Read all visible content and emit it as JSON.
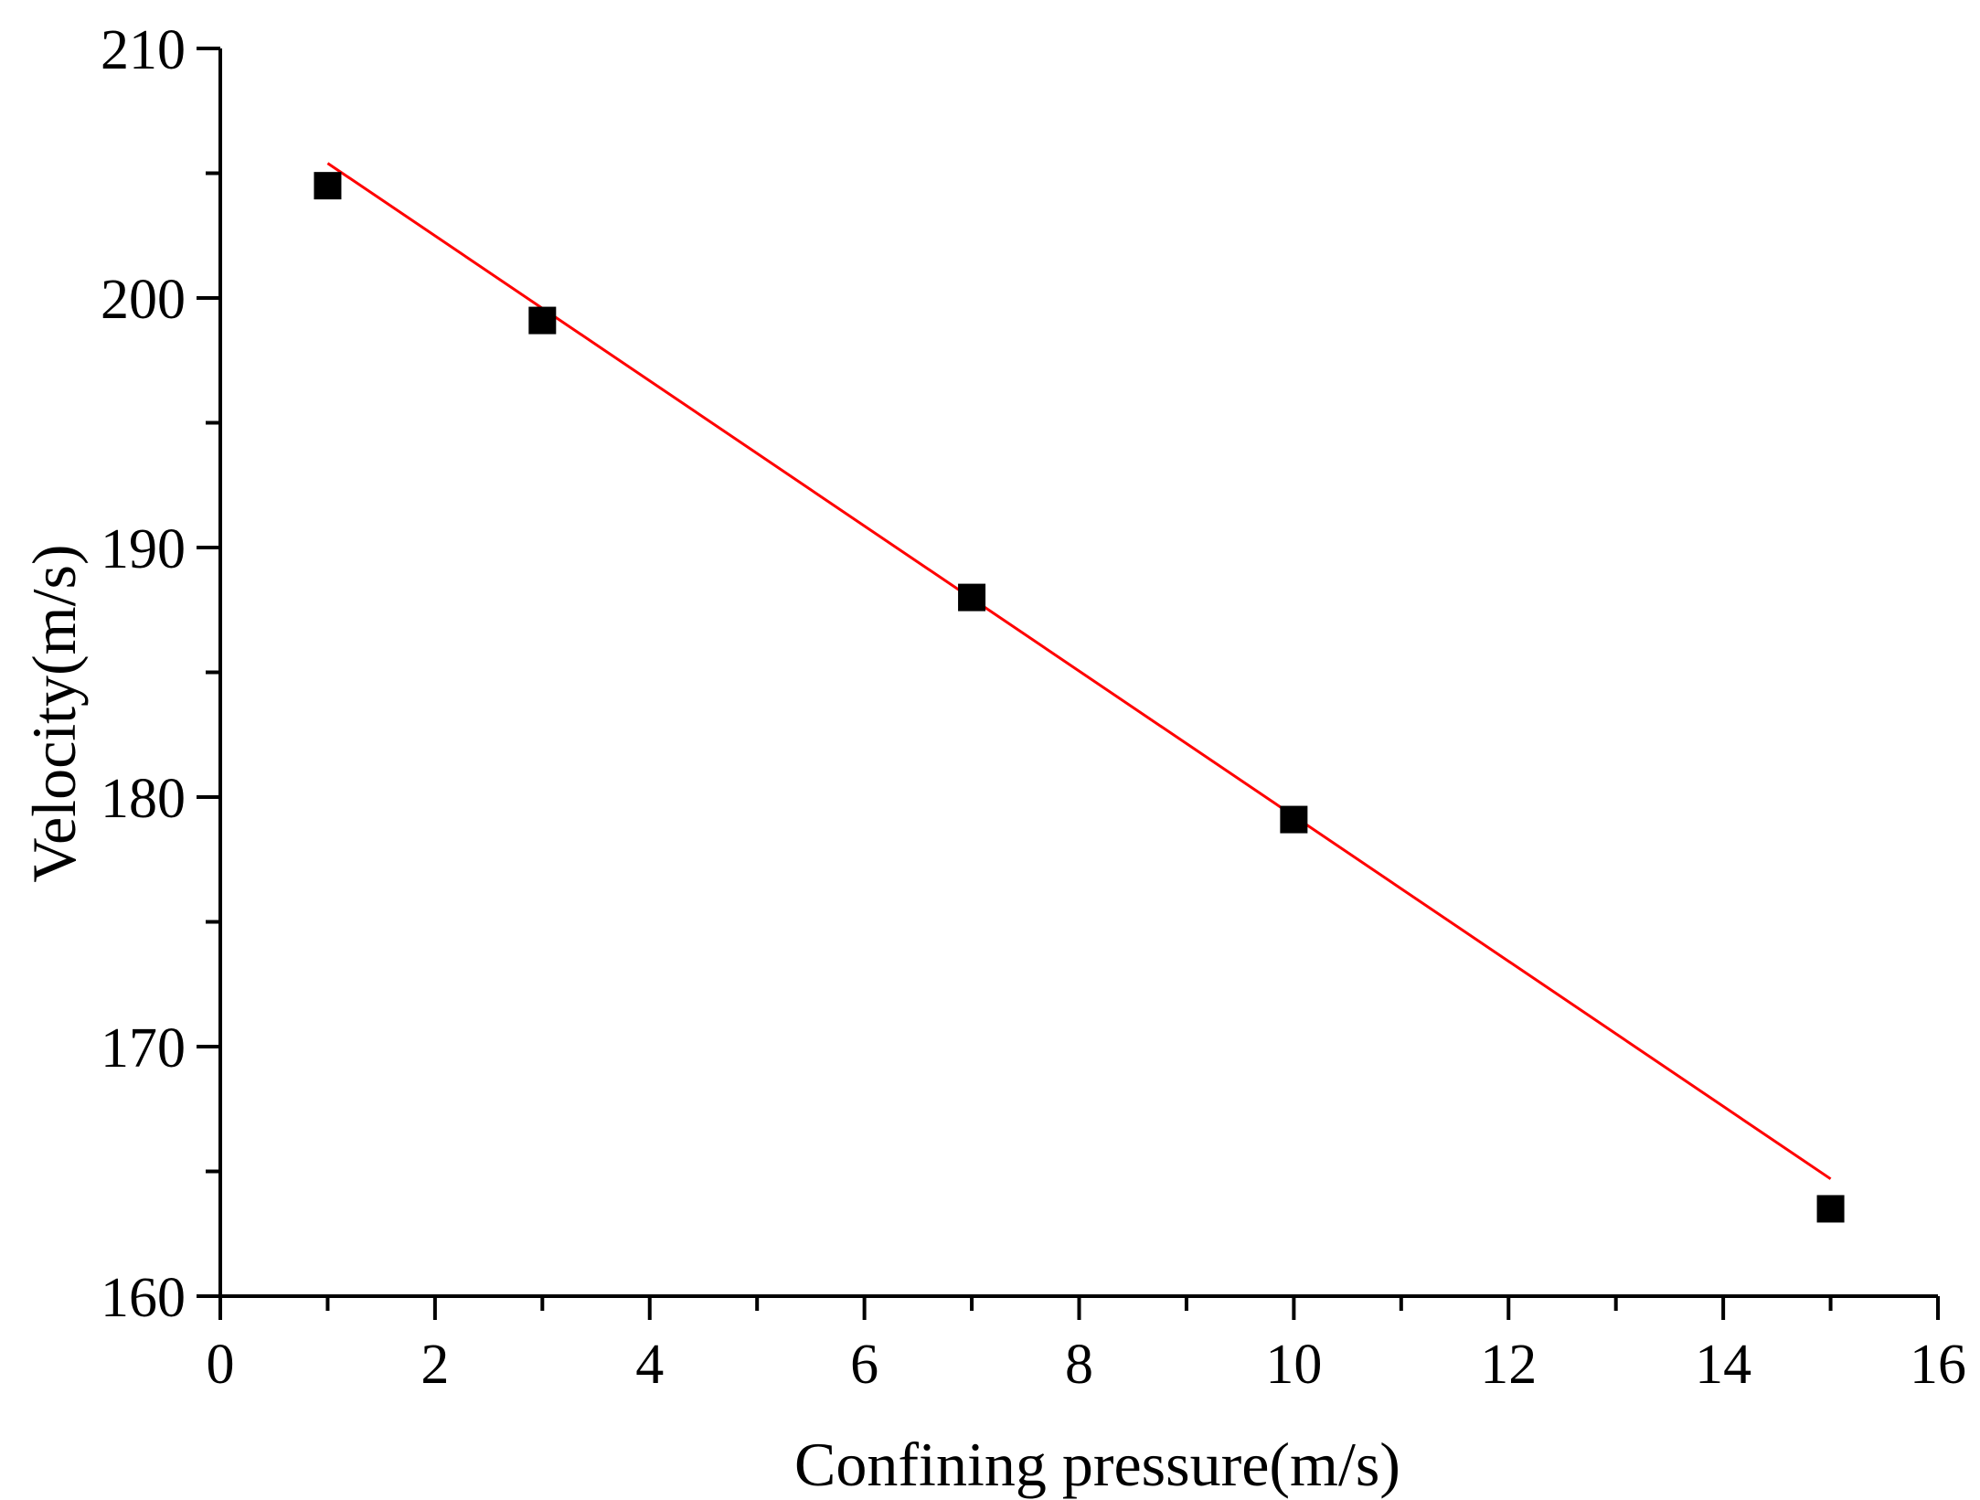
{
  "chart_data": {
    "type": "scatter",
    "title": "",
    "xlabel": "Confining pressure(m/s)",
    "ylabel": "Velocity(m/s)",
    "xlim": [
      0,
      16
    ],
    "ylim": [
      160,
      210
    ],
    "x_ticks": [
      "0",
      "2",
      "4",
      "6",
      "8",
      "10",
      "12",
      "14",
      "16"
    ],
    "y_ticks": [
      "160",
      "170",
      "180",
      "190",
      "200",
      "210"
    ],
    "x_minor_step": 1,
    "y_minor_step": 5,
    "grid": false,
    "legend": "none",
    "series": [
      {
        "marker": "square",
        "color": "#000000",
        "x": [
          1,
          3,
          7,
          10,
          15
        ],
        "y": [
          204.5,
          199.1,
          188.0,
          179.1,
          163.5
        ]
      }
    ],
    "fit_line": {
      "color": "#ff0000",
      "x": [
        1,
        15
      ],
      "y": [
        205.4,
        164.7
      ]
    }
  }
}
